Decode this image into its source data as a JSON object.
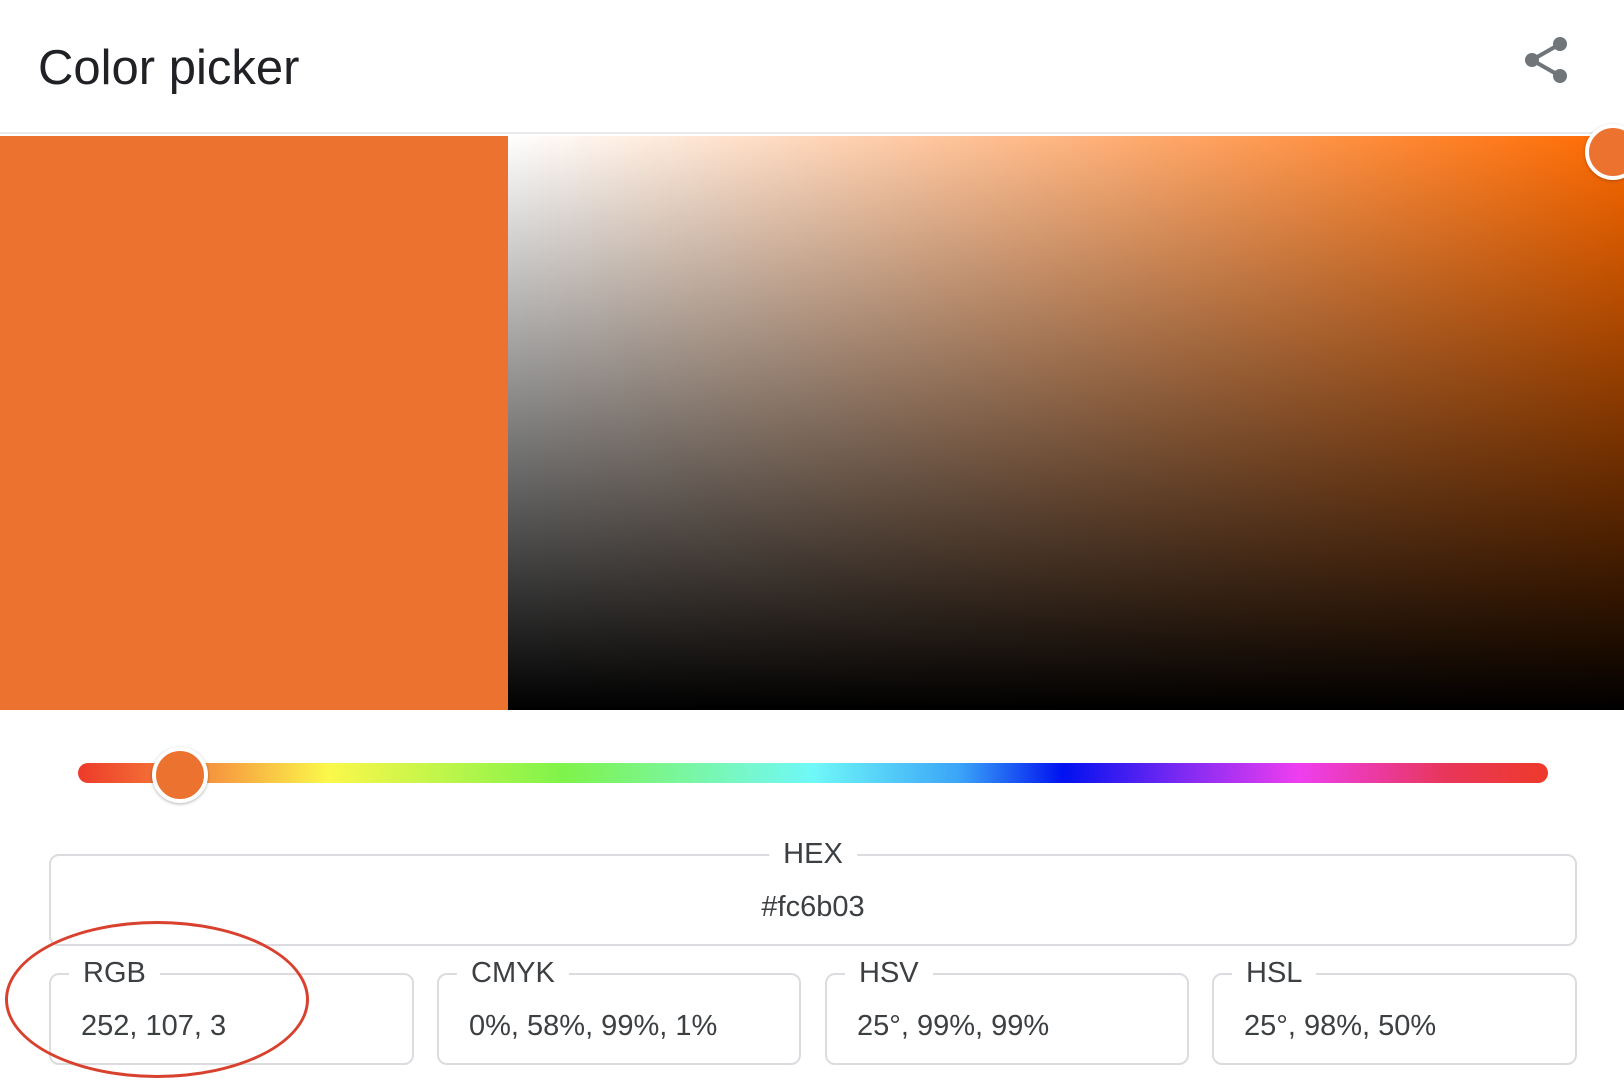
{
  "title": "Color picker",
  "share": {
    "icon": "share-icon"
  },
  "color": {
    "hex": "#fc6b03",
    "swatch_display": "#ec7230",
    "pure_hue": "#ff6a00"
  },
  "picker": {
    "saturation": 0.99,
    "value": 0.99,
    "hue_degrees": 25
  },
  "fields": {
    "hex": {
      "label": "HEX",
      "value": "#fc6b03"
    },
    "rgb": {
      "label": "RGB",
      "value": "252, 107, 3"
    },
    "cmyk": {
      "label": "CMYK",
      "value": "0%, 58%, 99%, 1%"
    },
    "hsv": {
      "label": "HSV",
      "value": "25°, 99%, 99%"
    },
    "hsl": {
      "label": "HSL",
      "value": "25°, 98%, 50%"
    }
  },
  "annotation": {
    "color": "#d9412f"
  }
}
